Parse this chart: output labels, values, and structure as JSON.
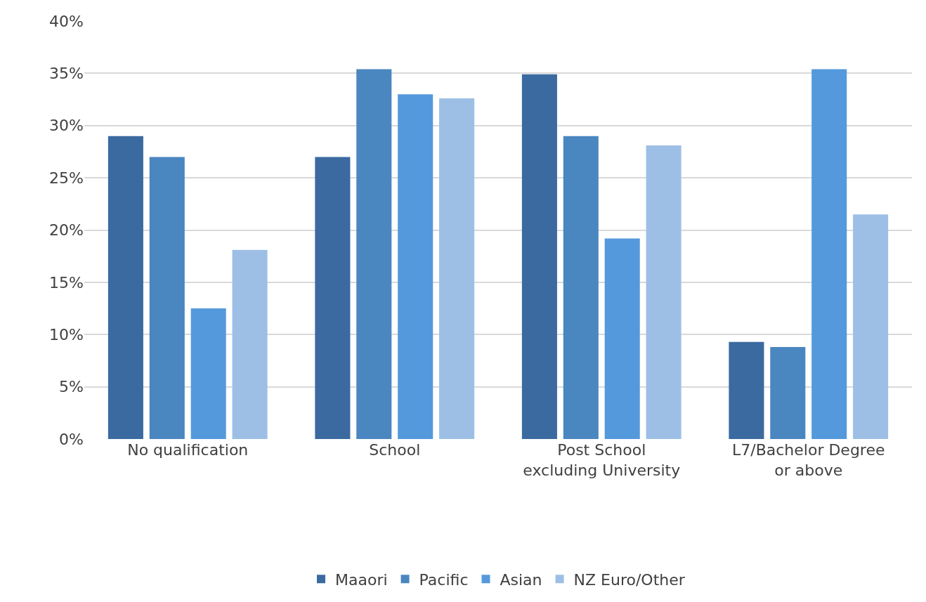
{
  "chart_data": {
    "type": "bar",
    "categories": [
      "No qualification",
      "School",
      "Post School excluding University",
      "L7/Bachelor Degree or above"
    ],
    "series": [
      {
        "name": "Maaori",
        "color": "#3b6aa0",
        "values": [
          29.0,
          27.0,
          34.9,
          9.3
        ]
      },
      {
        "name": "Pacific",
        "color": "#4a86c0",
        "values": [
          27.0,
          35.4,
          29.0,
          8.8
        ]
      },
      {
        "name": "Asian",
        "color": "#5499dc",
        "values": [
          12.5,
          33.0,
          19.2,
          35.4
        ]
      },
      {
        "name": "NZ Euro/Other",
        "color": "#9dbfe6",
        "values": [
          18.1,
          32.6,
          28.1,
          21.5
        ]
      }
    ],
    "ylim": [
      0,
      40
    ],
    "yticks": [
      {
        "value": 0,
        "label": "0%"
      },
      {
        "value": 5,
        "label": "5%"
      },
      {
        "value": 10,
        "label": "10%"
      },
      {
        "value": 15,
        "label": "15%"
      },
      {
        "value": 20,
        "label": "20%"
      },
      {
        "value": 25,
        "label": "25%"
      },
      {
        "value": 30,
        "label": "30%"
      },
      {
        "value": 35,
        "label": "35%"
      },
      {
        "value": 40,
        "label": "40%"
      }
    ],
    "grid": "y",
    "legend": "bottom"
  }
}
